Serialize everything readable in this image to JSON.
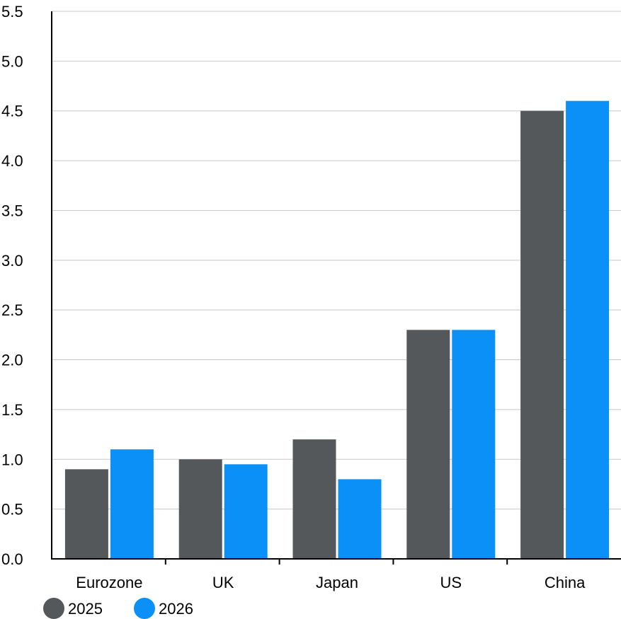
{
  "chart_data": {
    "type": "bar",
    "title": "",
    "xlabel": "",
    "ylabel": "",
    "categories": [
      "Eurozone",
      "UK",
      "Japan",
      "US",
      "China"
    ],
    "series": [
      {
        "name": "2025",
        "color": "#54585b",
        "values": [
          0.9,
          1.0,
          1.2,
          2.3,
          4.5
        ]
      },
      {
        "name": "2026",
        "color": "#0a90f6",
        "values": [
          1.1,
          0.95,
          0.8,
          2.3,
          4.6
        ]
      }
    ],
    "ylim": [
      0,
      5.5
    ],
    "yticks": [
      "0.0",
      "0.5",
      "1.0",
      "1.5",
      "2.0",
      "2.5",
      "3.0",
      "3.5",
      "4.0",
      "4.5",
      "5.0",
      "5.5"
    ],
    "grid": true,
    "legend_position": "bottom-left"
  }
}
